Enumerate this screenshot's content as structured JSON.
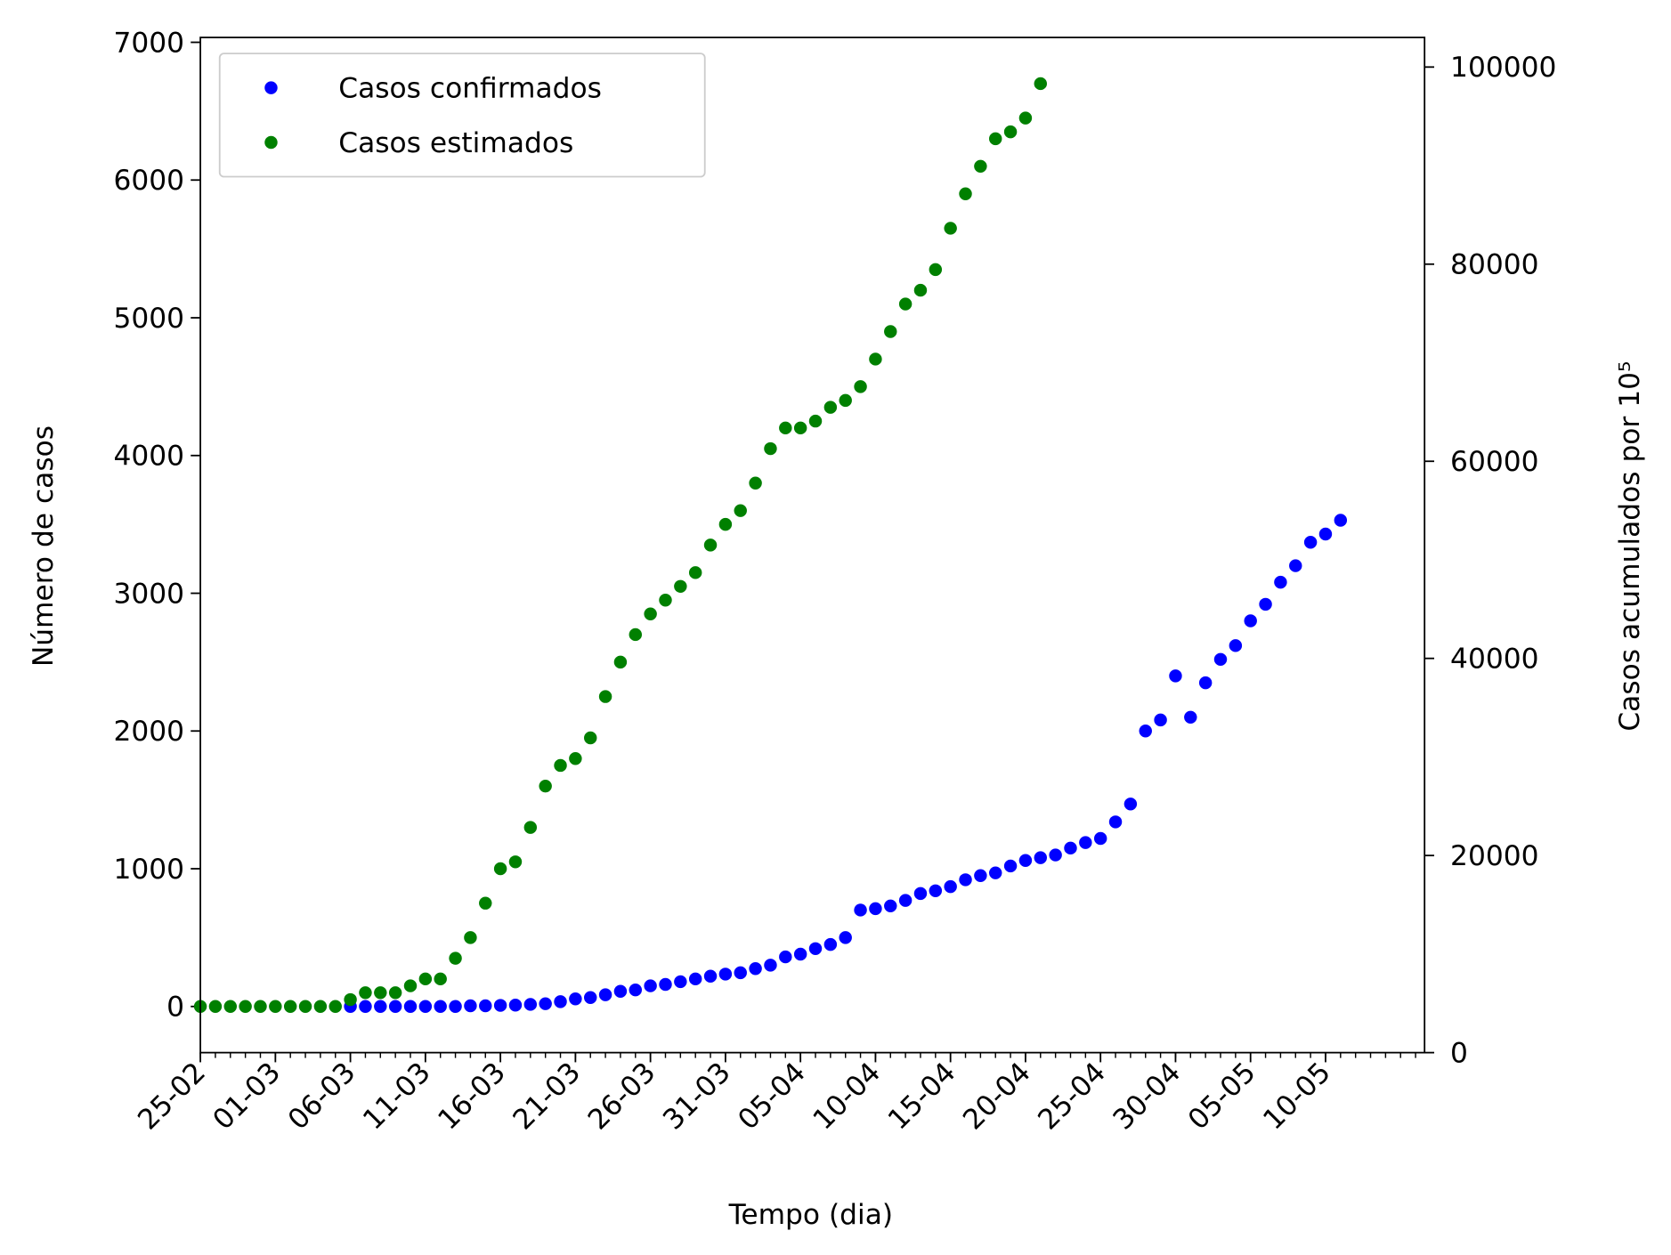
{
  "chart_data": {
    "type": "scatter",
    "xlabel": "Tempo (dia)",
    "ylabel": "Número de casos",
    "y2label": "Casos acumulados por 10⁵",
    "xlim": [
      0,
      81.6
    ],
    "xticks": [
      {
        "value": 0,
        "label": "25-02"
      },
      {
        "value": 5,
        "label": "01-03"
      },
      {
        "value": 10,
        "label": "06-03"
      },
      {
        "value": 15,
        "label": "11-03"
      },
      {
        "value": 20,
        "label": "16-03"
      },
      {
        "value": 25,
        "label": "21-03"
      },
      {
        "value": 30,
        "label": "26-03"
      },
      {
        "value": 35,
        "label": "31-03"
      },
      {
        "value": 40,
        "label": "05-04"
      },
      {
        "value": 45,
        "label": "10-04"
      },
      {
        "value": 50,
        "label": "15-04"
      },
      {
        "value": 55,
        "label": "20-04"
      },
      {
        "value": 60,
        "label": "25-04"
      },
      {
        "value": 65,
        "label": "30-04"
      },
      {
        "value": 70,
        "label": "05-05"
      },
      {
        "value": 75,
        "label": "10-05"
      }
    ],
    "ylim": [
      -335,
      7035
    ],
    "yticks": [
      0,
      1000,
      2000,
      3000,
      4000,
      5000,
      6000,
      7000
    ],
    "y2lim": [
      0,
      103000
    ],
    "y2ticks": [
      0,
      20000,
      40000,
      60000,
      80000,
      100000
    ],
    "legend": "upper left",
    "series": [
      {
        "name": "Casos confirmados",
        "color": "#0000ff",
        "x": [
          10,
          11,
          12,
          13,
          14,
          15,
          16,
          17,
          18,
          19,
          20,
          21,
          22,
          23,
          24,
          25,
          26,
          27,
          28,
          29,
          30,
          31,
          32,
          33,
          34,
          35,
          36,
          37,
          38,
          39,
          40,
          41,
          42,
          43,
          44,
          45,
          46,
          47,
          48,
          49,
          50,
          51,
          52,
          53,
          54,
          55,
          56,
          57,
          58,
          59,
          60,
          61,
          62,
          63,
          64,
          65,
          66,
          67,
          68,
          69,
          70,
          71,
          72,
          73,
          74,
          75,
          76
        ],
        "values": [
          0,
          0,
          0,
          0,
          0,
          0,
          0,
          0,
          5,
          5,
          8,
          10,
          15,
          20,
          35,
          55,
          65,
          85,
          110,
          120,
          150,
          160,
          180,
          200,
          220,
          235,
          245,
          275,
          300,
          360,
          380,
          420,
          450,
          500,
          700,
          710,
          730,
          770,
          820,
          840,
          870,
          920,
          950,
          970,
          1020,
          1060,
          1080,
          1100,
          1150,
          1190,
          1220,
          1340,
          1470,
          2000,
          2080,
          2400,
          2100,
          2350,
          2520,
          2620,
          2800,
          2920,
          3080,
          3200,
          3370,
          3430,
          3530
        ]
      },
      {
        "name": "Casos estimados",
        "color": "#008000",
        "x": [
          0,
          1,
          2,
          3,
          4,
          5,
          6,
          7,
          8,
          9,
          10,
          11,
          12,
          13,
          14,
          15,
          16,
          17,
          18,
          19,
          20,
          21,
          22,
          23,
          24,
          25,
          26,
          27,
          28,
          29,
          30,
          31,
          32,
          33,
          34,
          35,
          36,
          37,
          38,
          39,
          40,
          41,
          42,
          43,
          44,
          45,
          46,
          47,
          48,
          49,
          50,
          51,
          52,
          53,
          54,
          55,
          56
        ],
        "values": [
          0,
          0,
          0,
          0,
          0,
          0,
          0,
          0,
          0,
          0,
          50,
          100,
          100,
          100,
          150,
          200,
          200,
          350,
          500,
          750,
          1000,
          1050,
          1300,
          1600,
          1750,
          1800,
          1950,
          2250,
          2500,
          2700,
          2850,
          2950,
          3050,
          3150,
          3350,
          3500,
          3600,
          3800,
          4050,
          4200,
          4200,
          4250,
          4350,
          4400,
          4500,
          4700,
          4900,
          5100,
          5200,
          5350,
          5650,
          5900,
          6100,
          6300,
          6350,
          6450,
          6700
        ]
      }
    ]
  }
}
